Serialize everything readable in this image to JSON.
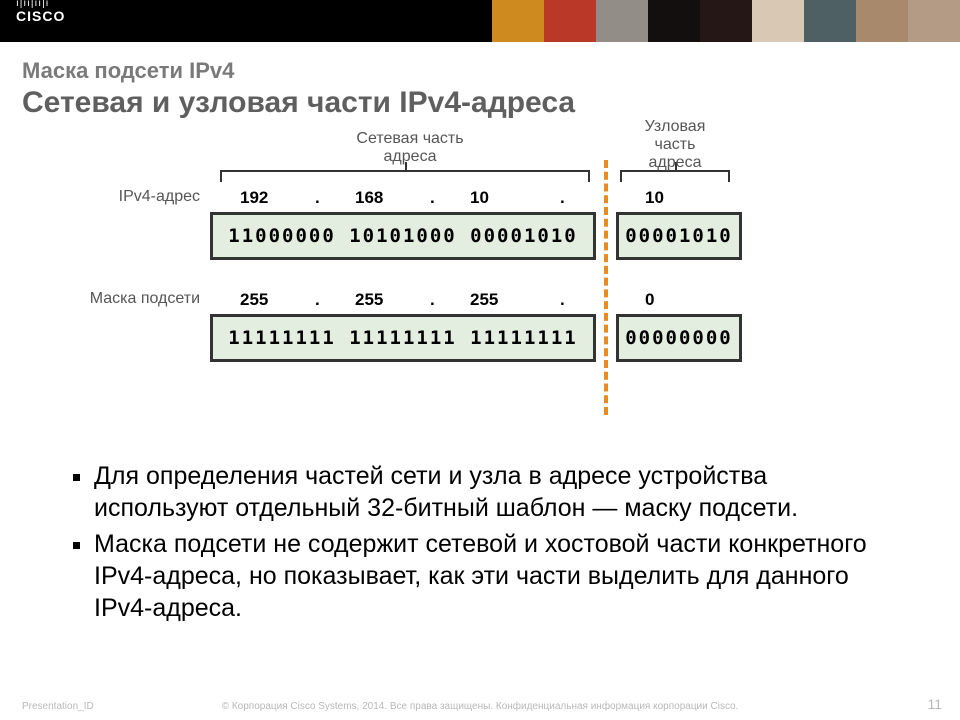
{
  "header": {
    "logo_text": "CISCO",
    "photo_colors": [
      "#cf8a1f",
      "#b93827",
      "#938d87",
      "#130f0e",
      "#241715",
      "#d9c8b4",
      "#4e6063",
      "#a8896b",
      "#b39b85"
    ]
  },
  "title_block": {
    "subtitle": "Маска подсети IPv4",
    "title": "Сетевая и узловая части IPv4-адреса"
  },
  "diagram": {
    "label_network": "Сетевая часть\nадреса",
    "label_host": "Узловая\nчасть\nадреса",
    "row1_label": "IPv4-адрес",
    "row2_label": "Маска подсети",
    "ip_decimal": [
      "192",
      ".",
      "168",
      ".",
      "10",
      ".",
      "10"
    ],
    "ip_binary_net": "11000000 10101000 00001010",
    "ip_binary_host": "00001010",
    "mask_decimal": [
      "255",
      ".",
      "255",
      ".",
      "255",
      ".",
      "0"
    ],
    "mask_binary_net": "11111111 11111111 11111111",
    "mask_binary_host": "00000000",
    "colors": {
      "box_border": "#333333",
      "box_fill": "#e4eee0",
      "dash": "#e78b25",
      "label": "#555555"
    }
  },
  "bullets": [
    "Для определения частей сети и узла в адресе устройства используют отдельный 32-битный шаблон — маску подсети.",
    "Маска подсети не содержит сетевой и хостовой части конкретного IPv4-адреса, но показывает, как эти части выделить для данного IPv4-адреса."
  ],
  "footer": {
    "left": "Presentation_ID",
    "center": "© Корпорация Cisco Systems, 2014. Все права защищены.   Конфиденциальная информация корпорации Cisco.",
    "page": "11"
  }
}
